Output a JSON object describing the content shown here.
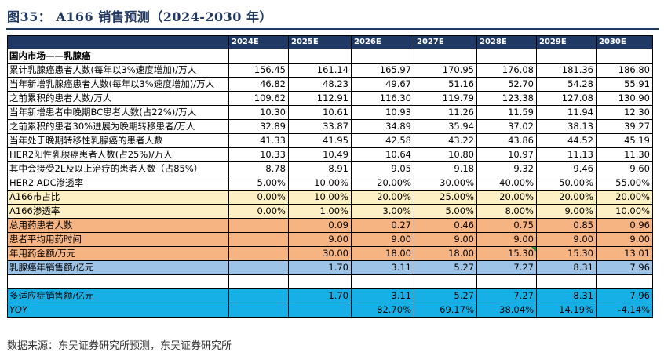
{
  "title": "图35：  A166 销售预测（2024-2030 年）",
  "source": "数据来源：东吴证券研究所预测，东吴证券研究所",
  "columns": [
    "2024E",
    "2025E",
    "2026E",
    "2027E",
    "2028E",
    "2029E",
    "2030E"
  ],
  "section_label": "国内市场——乳腺癌",
  "rows": [
    {
      "label": "累计乳腺癌患者人数(每年以3%速度增加)/万人",
      "values": [
        "156.45",
        "161.14",
        "165.97",
        "170.95",
        "176.08",
        "181.36",
        "186.80"
      ]
    },
    {
      "label": "当年新增乳腺癌患者人数(每年以3%速度增加)/万人",
      "values": [
        "46.82",
        "48.23",
        "49.67",
        "51.16",
        "52.70",
        "54.28",
        "55.91"
      ]
    },
    {
      "label": "之前累积的患者人数/万人",
      "values": [
        "109.62",
        "112.91",
        "116.30",
        "119.79",
        "123.38",
        "127.08",
        "130.90"
      ]
    },
    {
      "label": "当年新增患者中晚期BC患者人数(占22%)/万人",
      "values": [
        "10.30",
        "10.61",
        "10.93",
        "11.26",
        "11.59",
        "11.94",
        "12.30"
      ]
    },
    {
      "label": "之前累积的患者30%进展为晚期转移患者/万人",
      "values": [
        "32.89",
        "33.87",
        "34.89",
        "35.94",
        "37.02",
        "38.13",
        "39.27"
      ]
    },
    {
      "label": "当年处于晚期转移性乳腺癌的患者人数",
      "values": [
        "41.33",
        "41.95",
        "42.58",
        "43.22",
        "43.86",
        "44.52",
        "45.19"
      ]
    },
    {
      "label": "HER2阳性乳腺癌患者人数(占25%)/万人",
      "values": [
        "10.33",
        "10.49",
        "10.64",
        "10.80",
        "10.97",
        "11.13",
        "11.30"
      ]
    },
    {
      "label": "其中会接受2L及以上治疗的患者人数（占85%）",
      "values": [
        "8.78",
        "8.91",
        "9.05",
        "9.18",
        "9.32",
        "9.46",
        "9.60"
      ]
    },
    {
      "label": "HER2 ADC渗透率",
      "values": [
        "5.00%",
        "10.00%",
        "20.00%",
        "30.00%",
        "40.00%",
        "50.00%",
        "55.00%"
      ]
    }
  ],
  "yellow_rows": [
    {
      "label": "A166市占比",
      "values": [
        "0.00%",
        "10.00%",
        "20.00%",
        "25.00%",
        "20.00%",
        "20.00%",
        "20.00%"
      ]
    },
    {
      "label": "A166渗透率",
      "values": [
        "0.00%",
        "1.00%",
        "3.00%",
        "5.00%",
        "8.00%",
        "9.00%",
        "10.00%"
      ]
    }
  ],
  "orange_rows": [
    {
      "label": "总用药患者人数",
      "values": [
        "",
        "0.09",
        "0.27",
        "0.46",
        "0.75",
        "0.85",
        "0.96"
      ]
    },
    {
      "label": "患者平均用药时间",
      "values": [
        "",
        "9.00",
        "9.00",
        "9.00",
        "9.00",
        "9.00",
        "9.00"
      ]
    },
    {
      "label": "年用药金额/万元",
      "values": [
        "",
        "30.00",
        "18.00",
        "18.00",
        "15.30",
        "15.30",
        "13.01"
      ]
    }
  ],
  "blue_row": {
    "label": "乳腺癌年销售额/亿元",
    "values": [
      "",
      "1.70",
      "3.11",
      "5.27",
      "7.27",
      "8.31",
      "7.96"
    ]
  },
  "cyan_rows": [
    {
      "label": "多适应症销售额/亿元",
      "values": [
        "",
        "1.70",
        "3.11",
        "5.27",
        "7.27",
        "8.31",
        "7.96"
      ]
    },
    {
      "label": "YOY",
      "values": [
        "",
        "",
        "82.70%",
        "69.17%",
        "38.04%",
        "14.19%",
        "-4.14%"
      ]
    }
  ],
  "colors": {
    "header": "#1f3864",
    "yellow": "#fdf0c4",
    "orange": "#f7b483",
    "blue": "#9dc3e6",
    "cyan": "#16b0e6"
  }
}
